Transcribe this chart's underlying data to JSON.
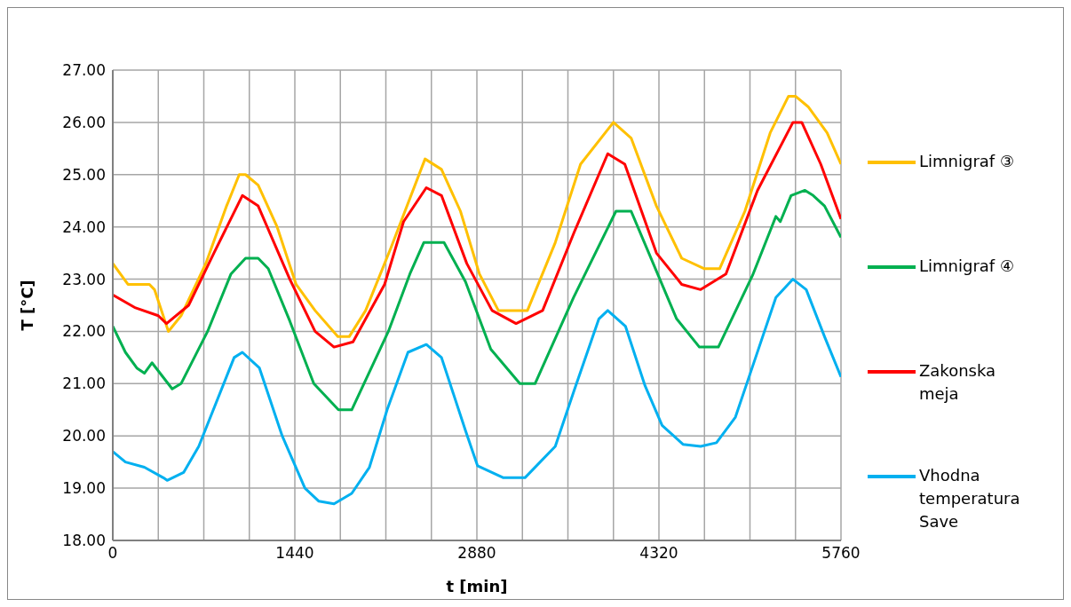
{
  "chart_data": {
    "type": "line",
    "xlabel": "t [min]",
    "ylabel": "T [°C]",
    "legend": "right",
    "grid": true,
    "line_style": "solid",
    "marker": "none",
    "xlim": [
      0,
      5760
    ],
    "xticks": [
      0,
      {
        "value": 360,
        "label": null
      },
      {
        "value": 720,
        "label": null
      },
      {
        "value": 1080,
        "label": null
      },
      1440,
      {
        "value": 1800,
        "label": null
      },
      {
        "value": 2160,
        "label": null
      },
      {
        "value": 2520,
        "label": null
      },
      2880,
      {
        "value": 3240,
        "label": null
      },
      {
        "value": 3600,
        "label": null
      },
      {
        "value": 3960,
        "label": null
      },
      4320,
      {
        "value": 4680,
        "label": null
      },
      {
        "value": 5040,
        "label": null
      },
      {
        "value": 5400,
        "label": null
      },
      5760
    ],
    "ylim": [
      18,
      27
    ],
    "yticks": [
      {
        "value": 18,
        "label": "18.00"
      },
      {
        "value": 19,
        "label": "19.00"
      },
      {
        "value": 20,
        "label": "20.00"
      },
      {
        "value": 21,
        "label": "21.00"
      },
      {
        "value": 22,
        "label": "22.00"
      },
      {
        "value": 23,
        "label": "23.00"
      },
      {
        "value": 24,
        "label": "24.00"
      },
      {
        "value": 25,
        "label": "25.00"
      },
      {
        "value": 26,
        "label": "26.00"
      },
      {
        "value": 27,
        "label": "27.00"
      }
    ],
    "series": [
      {
        "name": "Limnigraf ③",
        "color": "#ffc000",
        "x": [
          0,
          120,
          290,
          330,
          440,
          540,
          736,
          900,
          1000,
          1050,
          1150,
          1300,
          1450,
          1600,
          1780,
          1870,
          2000,
          2200,
          2470,
          2600,
          2750,
          2900,
          3050,
          3280,
          3500,
          3700,
          3960,
          4100,
          4300,
          4500,
          4680,
          4800,
          5000,
          5200,
          5345,
          5400,
          5500,
          5650,
          5760
        ],
        "values": [
          23.3,
          22.9,
          22.9,
          22.8,
          22.0,
          22.3,
          23.3,
          24.4,
          25.0,
          25.0,
          24.8,
          24.0,
          22.9,
          22.4,
          21.9,
          21.9,
          22.4,
          23.6,
          25.3,
          25.1,
          24.3,
          23.1,
          22.4,
          22.4,
          23.7,
          25.2,
          26.0,
          25.7,
          24.4,
          23.4,
          23.2,
          23.2,
          24.3,
          25.8,
          26.5,
          26.5,
          26.3,
          25.8,
          25.2
        ]
      },
      {
        "name": "Limnigraf ④",
        "color": "#00b050",
        "x": [
          0,
          100,
          190,
          250,
          310,
          470,
          540,
          750,
          935,
          1050,
          1150,
          1230,
          1400,
          1590,
          1785,
          1890,
          2180,
          2350,
          2460,
          2620,
          2790,
          2990,
          3220,
          3340,
          3645,
          3980,
          4100,
          4460,
          4640,
          4790,
          5060,
          5245,
          5280,
          5365,
          5475,
          5540,
          5630,
          5760
        ],
        "values": [
          22.1,
          21.6,
          21.3,
          21.2,
          21.4,
          20.9,
          21.0,
          22.0,
          23.1,
          23.4,
          23.4,
          23.2,
          22.2,
          21.0,
          20.5,
          20.5,
          22.0,
          23.1,
          23.7,
          23.7,
          22.95,
          21.66,
          21.0,
          21.0,
          22.65,
          24.3,
          24.3,
          22.24,
          21.7,
          21.7,
          23.07,
          24.2,
          24.1,
          24.6,
          24.7,
          24.6,
          24.4,
          23.8
        ]
      },
      {
        "name": "Zakonska meja",
        "color": "#ff0000",
        "x": [
          0,
          180,
          360,
          425,
          600,
          800,
          1025,
          1150,
          1400,
          1600,
          1750,
          1900,
          2150,
          2300,
          2480,
          2600,
          2800,
          3000,
          3190,
          3400,
          3650,
          3915,
          4050,
          4300,
          4500,
          4650,
          4850,
          5100,
          5380,
          5450,
          5600,
          5760
        ],
        "values": [
          22.7,
          22.45,
          22.3,
          22.15,
          22.5,
          23.5,
          24.6,
          24.4,
          23.0,
          22.0,
          21.7,
          21.8,
          22.9,
          24.1,
          24.75,
          24.6,
          23.3,
          22.4,
          22.15,
          22.4,
          23.9,
          25.4,
          25.2,
          23.5,
          22.9,
          22.8,
          23.1,
          24.7,
          26.0,
          26.0,
          25.2,
          24.15
        ]
      },
      {
        "name": "Vhodna temperatura Save",
        "color": "#00b0f0",
        "x": [
          0,
          100,
          250,
          400,
          430,
          560,
          680,
          960,
          1025,
          1160,
          1340,
          1520,
          1630,
          1750,
          1890,
          2030,
          2170,
          2335,
          2480,
          2600,
          2790,
          2885,
          3090,
          3260,
          3500,
          3645,
          3845,
          3915,
          4055,
          4210,
          4345,
          4510,
          4650,
          4775,
          4925,
          5065,
          5245,
          5380,
          5485,
          5630,
          5760
        ],
        "values": [
          19.7,
          19.5,
          19.4,
          19.2,
          19.15,
          19.3,
          19.8,
          21.5,
          21.6,
          21.3,
          20.0,
          19.0,
          18.75,
          18.7,
          18.9,
          19.4,
          20.5,
          21.6,
          21.75,
          21.5,
          20.1,
          19.43,
          19.2,
          19.2,
          19.8,
          20.84,
          22.24,
          22.4,
          22.1,
          20.96,
          20.2,
          19.84,
          19.8,
          19.87,
          20.36,
          21.36,
          22.65,
          23.0,
          22.8,
          21.9,
          21.13
        ]
      }
    ]
  }
}
